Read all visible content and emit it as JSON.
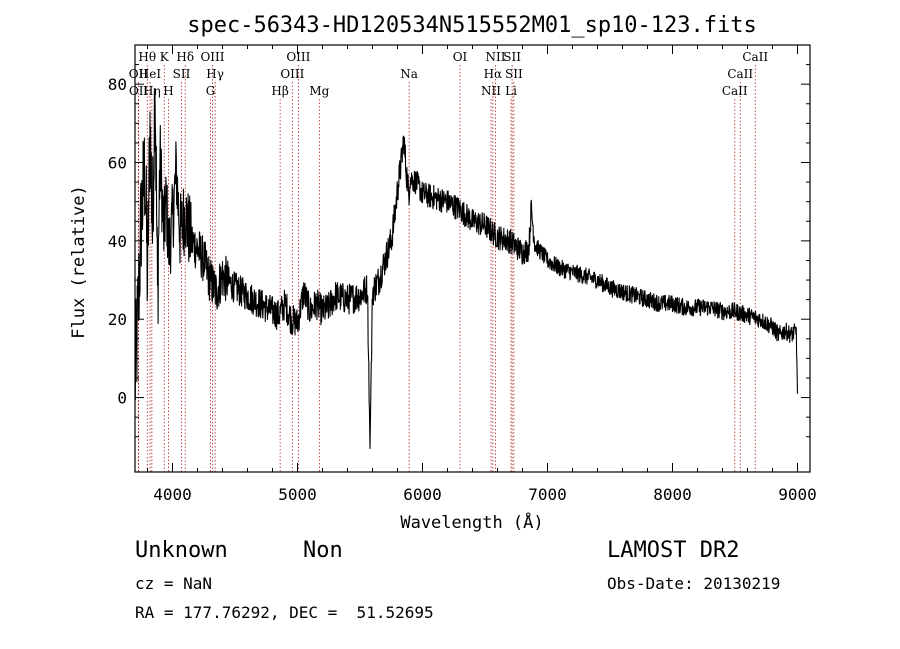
{
  "chart_data": {
    "type": "line",
    "title": "spec-56343-HD120534N515552M01_sp10-123.fits",
    "xlabel": "Wavelength (Å)",
    "ylabel": "Flux (relative)",
    "xlim": [
      3700,
      9100
    ],
    "ylim": [
      -19,
      90
    ],
    "xticks": [
      4000,
      5000,
      6000,
      7000,
      8000,
      9000
    ],
    "yticks": [
      0,
      20,
      40,
      60,
      80
    ],
    "grid": false,
    "legend": "none",
    "line_color": "#000000",
    "marker_color": "#b22222",
    "spectrum_anchors": {
      "x": [
        3700,
        3720,
        3750,
        3780,
        3800,
        3820,
        3840,
        3860,
        3880,
        3900,
        3930,
        3950,
        3970,
        4000,
        4030,
        4060,
        4100,
        4150,
        4200,
        4250,
        4300,
        4350,
        4400,
        4500,
        4600,
        4700,
        4800,
        4850,
        4900,
        4950,
        5000,
        5050,
        5100,
        5150,
        5200,
        5250,
        5300,
        5400,
        5500,
        5560,
        5580,
        5600,
        5650,
        5700,
        5750,
        5780,
        5800,
        5830,
        5850,
        5870,
        5890,
        5900,
        5950,
        6000,
        6100,
        6200,
        6300,
        6400,
        6500,
        6600,
        6700,
        6800,
        6850,
        6870,
        6900,
        6950,
        7000,
        7100,
        7200,
        7300,
        7400,
        7500,
        7600,
        7700,
        7800,
        7900,
        8000,
        8100,
        8200,
        8300,
        8400,
        8500,
        8600,
        8700,
        8750,
        8800,
        8850,
        8900,
        8950,
        8990,
        9000
      ],
      "y": [
        4,
        18,
        46,
        58,
        30,
        70,
        42,
        84,
        25,
        62,
        42,
        50,
        38,
        45,
        58,
        42,
        47,
        40,
        38,
        35,
        30,
        27,
        31,
        28,
        26,
        24,
        22,
        21,
        24,
        20,
        19,
        27,
        22,
        24,
        22,
        23,
        26,
        25,
        26,
        28,
        -13,
        27,
        30,
        35,
        40,
        47,
        53,
        60,
        66,
        58,
        52,
        56,
        55,
        52,
        51,
        50,
        48,
        45,
        44,
        41,
        40,
        37,
        38,
        48,
        39,
        37,
        35,
        33,
        32,
        31,
        30,
        28,
        27,
        26,
        25,
        24,
        24,
        23,
        23,
        23,
        22,
        22,
        21,
        20,
        19,
        18,
        16,
        17,
        16,
        17,
        1
      ]
    },
    "line_markers": [
      {
        "name": "OII",
        "x": 3727,
        "row": 2
      },
      {
        "name": "OII",
        "x": 3729,
        "row": 3
      },
      {
        "name": "Hθ",
        "x": 3798,
        "row": 1
      },
      {
        "name": "HeI",
        "x": 3820,
        "row": 2
      },
      {
        "name": "Hη",
        "x": 3835,
        "row": 3
      },
      {
        "name": "K",
        "x": 3934,
        "row": 1
      },
      {
        "name": "H",
        "x": 3968,
        "row": 3
      },
      {
        "name": "SII",
        "x": 4072,
        "row": 2
      },
      {
        "name": "Hδ",
        "x": 4102,
        "row": 1
      },
      {
        "name": "G",
        "x": 4304,
        "row": 3
      },
      {
        "name": "OIII",
        "x": 4320,
        "row": 1
      },
      {
        "name": "Hγ",
        "x": 4341,
        "row": 2
      },
      {
        "name": "Hβ",
        "x": 4861,
        "row": 3
      },
      {
        "name": "OIII",
        "x": 4959,
        "row": 2
      },
      {
        "name": "OIII",
        "x": 5007,
        "row": 1
      },
      {
        "name": "Mg",
        "x": 5175,
        "row": 3
      },
      {
        "name": "Na",
        "x": 5893,
        "row": 2
      },
      {
        "name": "OI",
        "x": 6300,
        "row": 1
      },
      {
        "name": "NII",
        "x": 6548,
        "row": 3
      },
      {
        "name": "Hα",
        "x": 6563,
        "row": 2
      },
      {
        "name": "NII",
        "x": 6584,
        "row": 1
      },
      {
        "name": "Li",
        "x": 6708,
        "row": 3
      },
      {
        "name": "SII",
        "x": 6717,
        "row": 1
      },
      {
        "name": "SII",
        "x": 6731,
        "row": 2
      },
      {
        "name": "CaII",
        "x": 8498,
        "row": 3
      },
      {
        "name": "CaII",
        "x": 8542,
        "row": 2
      },
      {
        "name": "CaII",
        "x": 8662,
        "row": 1
      }
    ]
  },
  "info": {
    "class": "Unknown",
    "subclass": "Non",
    "cz": "cz = NaN",
    "coords": "RA = 177.76292, DEC =  51.52695",
    "survey": "LAMOST DR2",
    "obs_date": "Obs-Date: 20130219"
  }
}
